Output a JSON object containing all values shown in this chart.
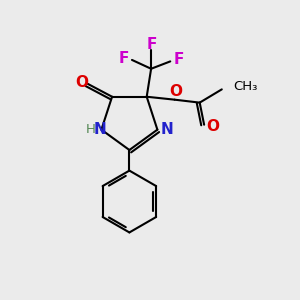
{
  "bg_color": "#ebebeb",
  "atom_colors": {
    "C": "#000000",
    "N": "#2222cc",
    "O": "#dd0000",
    "F": "#cc00cc",
    "H": "#558855"
  },
  "figsize": [
    3.0,
    3.0
  ],
  "dpi": 100,
  "lw": 1.5
}
